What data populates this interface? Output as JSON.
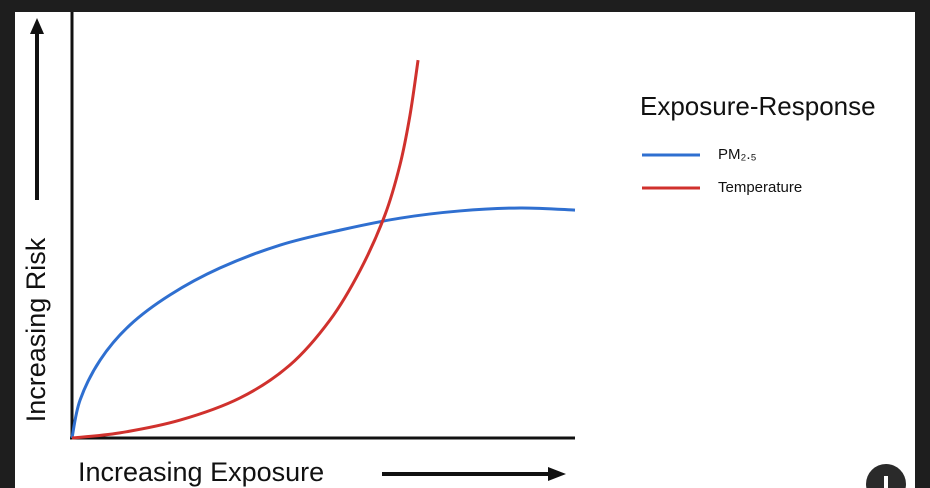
{
  "chart_data": {
    "type": "line",
    "x_label": "Increasing Exposure",
    "y_label": "Increasing Risk",
    "legend_title": "Exposure-Response",
    "legend_position": "upper right",
    "xlim": [
      0,
      100
    ],
    "ylim": [
      0,
      100
    ],
    "series": [
      {
        "name": "PM₂.₅",
        "color": "#2f6fd0",
        "x": [
          0,
          1.6,
          5.6,
          11.5,
          19.5,
          29.4,
          41.4,
          53.3,
          65.2,
          77.1,
          89.1,
          100
        ],
        "values": [
          0,
          8.9,
          18.3,
          26.5,
          33.6,
          39.9,
          45.3,
          48.8,
          51.6,
          53.3,
          54.0,
          53.5
        ]
      },
      {
        "name": "Temperature",
        "color": "#d0312d",
        "x": [
          0,
          9.5,
          21.5,
          33.4,
          43.3,
          51.3,
          57.3,
          62.2,
          65.2,
          67.2,
          68.8
        ],
        "values": [
          0,
          1.2,
          4.2,
          9.4,
          17.1,
          27.7,
          39.4,
          52.3,
          64.1,
          75.8,
          88.7
        ]
      }
    ]
  }
}
